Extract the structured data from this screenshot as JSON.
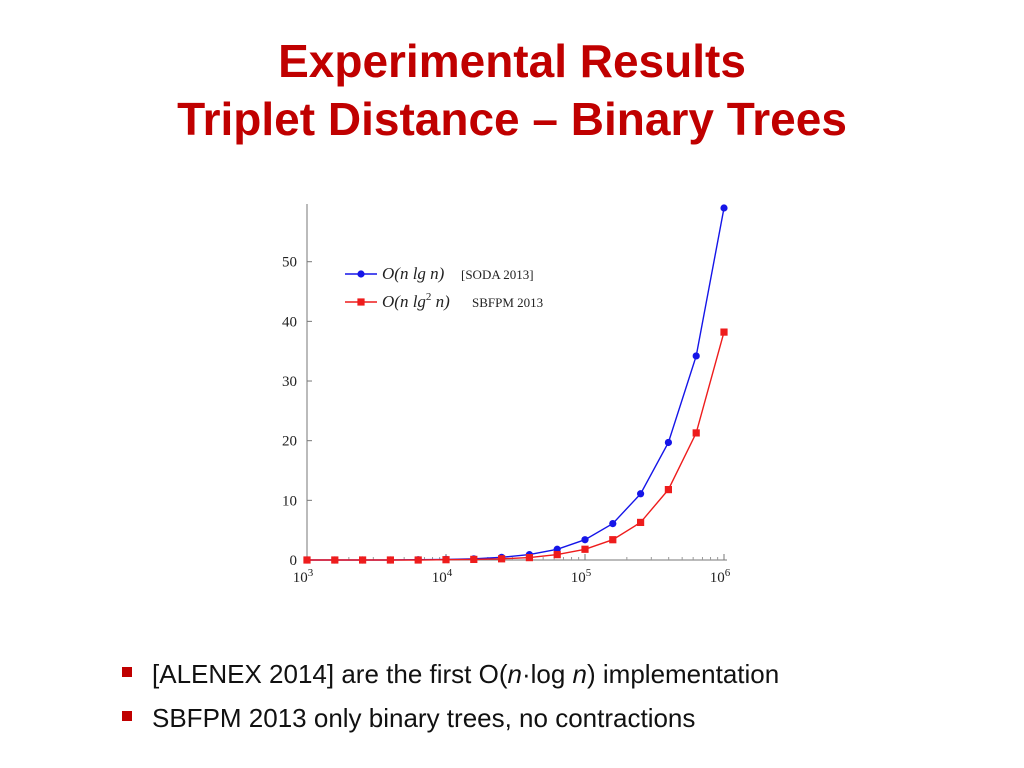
{
  "slide": {
    "title_line1": "Experimental Results",
    "title_line2": "Triplet Distance – Binary Trees"
  },
  "colors": {
    "title": "#c00000",
    "bullet": "#c00000",
    "series_blue": "#1515e8",
    "series_red": "#ee1c1c"
  },
  "chart_data": {
    "type": "line",
    "x_scale": "log",
    "x": [
      1000,
      1585,
      2512,
      3981,
      6310,
      10000,
      15849,
      25119,
      39811,
      63096,
      100000,
      158489,
      251189,
      398107,
      630957,
      1000000
    ],
    "x_ticks": [
      {
        "value": 1000,
        "base": "10",
        "exp": "3"
      },
      {
        "value": 10000,
        "base": "10",
        "exp": "4"
      },
      {
        "value": 100000,
        "base": "10",
        "exp": "5"
      },
      {
        "value": 1000000,
        "base": "10",
        "exp": "6"
      }
    ],
    "xlim": [
      1000,
      1000000
    ],
    "ylim": [
      0,
      59
    ],
    "y_ticks": [
      "0",
      "10",
      "20",
      "30",
      "40",
      "50"
    ],
    "y_tick_values": [
      0,
      10,
      20,
      30,
      40,
      50
    ],
    "xlabel": "",
    "ylabel": "",
    "grid": false,
    "legend_position": "top-left",
    "series": [
      {
        "name": "O(n lg n)",
        "legend_main": "O(n lg n)",
        "legend_sup": "",
        "legend_tail": "",
        "reference": "[SODA 2013]",
        "color": "#1515e8",
        "marker": "circle",
        "values": [
          0.0,
          0.0,
          0.0,
          0.0,
          0.05,
          0.1,
          0.2,
          0.45,
          0.9,
          1.8,
          3.4,
          6.1,
          11.1,
          19.7,
          34.2,
          59.0
        ]
      },
      {
        "name": "O(n lg² n)",
        "legend_main": "O(n lg",
        "legend_sup": "2",
        "legend_tail": " n)",
        "reference": "SBFPM 2013",
        "color": "#ee1c1c",
        "marker": "square",
        "values": [
          0.0,
          0.0,
          0.0,
          0.0,
          0.0,
          0.05,
          0.1,
          0.2,
          0.4,
          0.9,
          1.8,
          3.4,
          6.3,
          11.8,
          21.3,
          38.2
        ]
      }
    ]
  },
  "bullets": [
    {
      "seg1": "[ALENEX 2014] are the first O(",
      "ital1": "n",
      "seg2": "·log ",
      "ital2": "n",
      "seg3": ") implementation"
    },
    {
      "seg1": "SBFPM 2013 only binary trees, no contractions",
      "ital1": "",
      "seg2": "",
      "ital2": "",
      "seg3": ""
    }
  ]
}
